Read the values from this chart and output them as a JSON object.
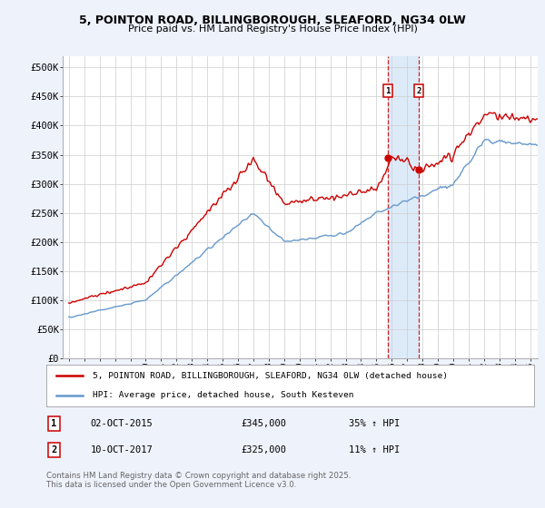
{
  "title_line1": "5, POINTON ROAD, BILLINGBOROUGH, SLEAFORD, NG34 0LW",
  "title_line2": "Price paid vs. HM Land Registry's House Price Index (HPI)",
  "ylabel_ticks": [
    "£0",
    "£50K",
    "£100K",
    "£150K",
    "£200K",
    "£250K",
    "£300K",
    "£350K",
    "£400K",
    "£450K",
    "£500K"
  ],
  "ytick_values": [
    0,
    50000,
    100000,
    150000,
    200000,
    250000,
    300000,
    350000,
    400000,
    450000,
    500000
  ],
  "line1_color": "#cc0000",
  "line2_color": "#6699cc",
  "sale1_date": "02-OCT-2015",
  "sale1_price": "£345,000",
  "sale1_hpi": "35% ↑ HPI",
  "sale1_year": 2015.79,
  "sale1_value": 345000,
  "sale2_date": "10-OCT-2017",
  "sale2_price": "£325,000",
  "sale2_hpi": "11% ↑ HPI",
  "sale2_year": 2017.79,
  "sale2_value": 325000,
  "legend_line1": "5, POINTON ROAD, BILLINGBOROUGH, SLEAFORD, NG34 0LW (detached house)",
  "legend_line2": "HPI: Average price, detached house, South Kesteven",
  "footer": "Contains HM Land Registry data © Crown copyright and database right 2025.\nThis data is licensed under the Open Government Licence v3.0.",
  "background_color": "#eef2fb",
  "plot_bg_color": "#ffffff",
  "shade_color": "#d8e8f8"
}
